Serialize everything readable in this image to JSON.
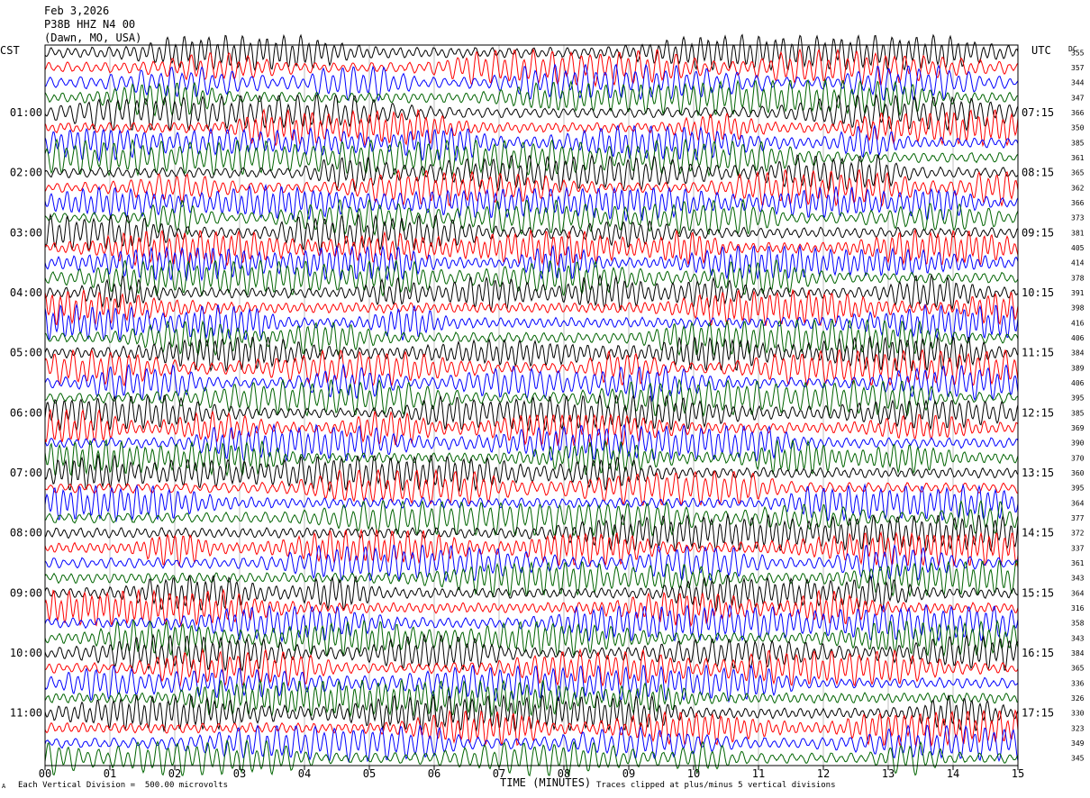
{
  "header": {
    "date": "Feb 3,2026",
    "station": "P38B HHZ N4 00",
    "location": "(Dawn, MO, USA)"
  },
  "left_tz": "CST",
  "right_tz": "UTC",
  "dc_label": "DC",
  "footer": {
    "scale": "Each Vertical Division =  500.00 microvolts",
    "clip": "Traces clipped at plus/minus 5 vertical divisions",
    "corner_mark": "A"
  },
  "chart_data": {
    "type": "line",
    "title": "",
    "xlabel": "TIME (MINUTES)",
    "ylabel": "",
    "xlim": [
      0,
      15
    ],
    "x_ticks": [
      "00",
      "01",
      "02",
      "03",
      "04",
      "05",
      "06",
      "07",
      "08",
      "09",
      "10",
      "11",
      "12",
      "13",
      "14",
      "15"
    ],
    "left_time_labels": [
      "01:00",
      "02:00",
      "03:00",
      "04:00",
      "05:00",
      "06:00",
      "07:00",
      "08:00",
      "09:00",
      "10:00",
      "11:00"
    ],
    "right_time_labels": [
      "07:15",
      "08:15",
      "09:15",
      "10:15",
      "11:15",
      "12:15",
      "13:15",
      "14:15",
      "15:15",
      "16:15",
      "17:15"
    ],
    "trace_colors": [
      "#000000",
      "#ff0000",
      "#0000ff",
      "#006400"
    ],
    "dc_offsets": [
      355,
      357,
      344,
      347,
      366,
      350,
      385,
      361,
      365,
      362,
      366,
      373,
      381,
      405,
      414,
      378,
      391,
      398,
      416,
      406,
      384,
      389,
      406,
      395,
      385,
      369,
      390,
      370,
      360,
      395,
      364,
      377,
      372,
      337,
      361,
      343,
      364,
      316,
      358,
      343,
      384,
      365,
      336,
      326,
      330,
      323,
      349,
      345
    ],
    "grid": true
  }
}
